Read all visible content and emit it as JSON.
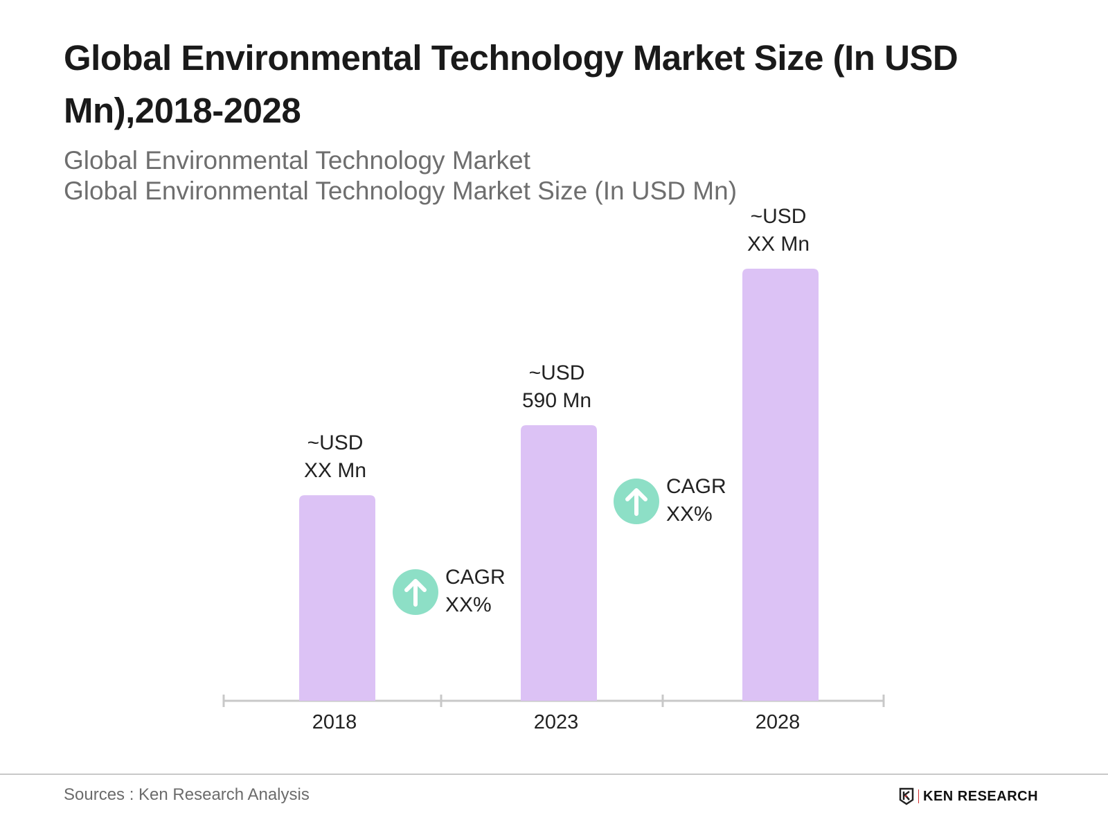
{
  "title": "Global Environmental Technology Market Size (In USD Mn),2018-2028",
  "subtitle_lines": [
    "Global Environmental Technology Market",
    "Global Environmental Technology Market Size (In USD Mn)"
  ],
  "chart_data": {
    "type": "bar",
    "categories": [
      "2018",
      "2023",
      "2028"
    ],
    "values": [
      440,
      590,
      925
    ],
    "data_labels": [
      [
        "~USD",
        "XX Mn"
      ],
      [
        "~USD",
        "590 Mn"
      ],
      [
        "~USD",
        "XX Mn"
      ]
    ],
    "annotations": [
      {
        "between": [
          "2018",
          "2023"
        ],
        "lines": [
          "CAGR",
          "XX%"
        ],
        "icon": "arrow-up-circle-icon"
      },
      {
        "between": [
          "2023",
          "2028"
        ],
        "lines": [
          "CAGR",
          "XX%"
        ],
        "icon": "arrow-up-circle-icon"
      }
    ],
    "xlabel": "",
    "ylabel": "",
    "grid": false,
    "colors": {
      "bar": "#dcc2f5",
      "cagr_icon": "#8ddfc6",
      "axis": "#c8c8c8"
    }
  },
  "footer": {
    "sources": "Sources : Ken Research Analysis",
    "logo": "KEN RESEARCH"
  }
}
